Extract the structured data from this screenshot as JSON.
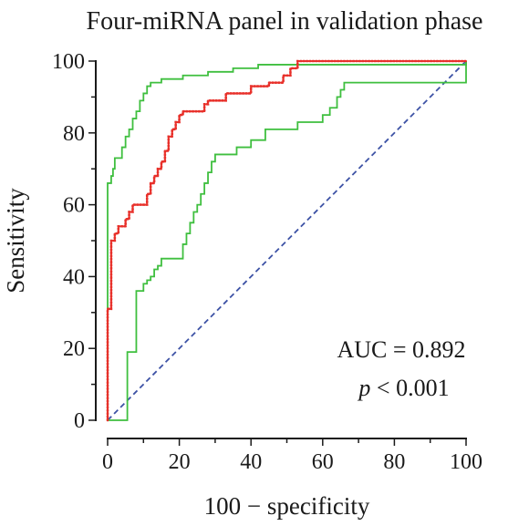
{
  "chart_data": {
    "type": "line",
    "title": "Four-miRNA panel in validation phase",
    "xlabel": "100 − specificity",
    "ylabel": "Sensitivity",
    "xlim": [
      0,
      100
    ],
    "ylim": [
      0,
      100
    ],
    "x_ticks": [
      "0",
      "20",
      "40",
      "60",
      "80",
      "100"
    ],
    "y_ticks": [
      "0",
      "20",
      "40",
      "60",
      "80",
      "100"
    ],
    "grid": false,
    "annotations": {
      "auc": "AUC = 0.892",
      "p_symbol": "p",
      "p_rest": " < 0.001"
    },
    "colors": {
      "roc": "#e8302a",
      "ci": "#3fbf3f",
      "reference": "#3d52a5",
      "axis": "#1a1a1a"
    },
    "series": [
      {
        "role": "roc",
        "style": "dotted",
        "points": [
          [
            0,
            0
          ],
          [
            0,
            31
          ],
          [
            1,
            31
          ],
          [
            1,
            50
          ],
          [
            2,
            50
          ],
          [
            2,
            52
          ],
          [
            3,
            52
          ],
          [
            3,
            54
          ],
          [
            5,
            54
          ],
          [
            5,
            56
          ],
          [
            6,
            56
          ],
          [
            6,
            58
          ],
          [
            7,
            58
          ],
          [
            7,
            60
          ],
          [
            11,
            60
          ],
          [
            11,
            63
          ],
          [
            12,
            63
          ],
          [
            12,
            66
          ],
          [
            13,
            66
          ],
          [
            13,
            68
          ],
          [
            14,
            68
          ],
          [
            14,
            70
          ],
          [
            15,
            70
          ],
          [
            15,
            72
          ],
          [
            16,
            72
          ],
          [
            16,
            75
          ],
          [
            17,
            75
          ],
          [
            17,
            77
          ],
          [
            17,
            79
          ],
          [
            18,
            79
          ],
          [
            18,
            81
          ],
          [
            19,
            81
          ],
          [
            19,
            83
          ],
          [
            20,
            83
          ],
          [
            20,
            85
          ],
          [
            21,
            85
          ],
          [
            21,
            86
          ],
          [
            27,
            86
          ],
          [
            27,
            88
          ],
          [
            28,
            88
          ],
          [
            28,
            89
          ],
          [
            33,
            89
          ],
          [
            33,
            91
          ],
          [
            40,
            91
          ],
          [
            40,
            93
          ],
          [
            45,
            93
          ],
          [
            45,
            94
          ],
          [
            49,
            94
          ],
          [
            49,
            96
          ],
          [
            51,
            96
          ],
          [
            51,
            98
          ],
          [
            53,
            98
          ],
          [
            53,
            100
          ],
          [
            100,
            100
          ]
        ]
      },
      {
        "role": "ci-upper",
        "style": "solid",
        "points": [
          [
            0,
            0
          ],
          [
            0,
            66
          ],
          [
            1,
            66
          ],
          [
            1,
            68
          ],
          [
            1.5,
            68
          ],
          [
            1.5,
            70
          ],
          [
            2,
            70
          ],
          [
            2,
            73
          ],
          [
            4,
            73
          ],
          [
            4,
            76
          ],
          [
            5,
            76
          ],
          [
            5,
            79
          ],
          [
            6,
            79
          ],
          [
            6,
            81
          ],
          [
            7,
            81
          ],
          [
            7,
            84
          ],
          [
            8,
            84
          ],
          [
            8,
            86
          ],
          [
            9,
            86
          ],
          [
            9,
            89
          ],
          [
            10,
            89
          ],
          [
            10,
            91
          ],
          [
            11,
            91
          ],
          [
            11,
            93
          ],
          [
            12,
            93
          ],
          [
            12,
            94
          ],
          [
            15,
            94
          ],
          [
            15,
            95
          ],
          [
            21,
            95
          ],
          [
            21,
            96
          ],
          [
            28,
            96
          ],
          [
            28,
            97
          ],
          [
            35,
            97
          ],
          [
            35,
            98
          ],
          [
            42,
            98
          ],
          [
            42,
            99
          ],
          [
            100,
            99
          ],
          [
            100,
            100
          ]
        ]
      },
      {
        "role": "ci-lower",
        "style": "solid",
        "points": [
          [
            0,
            0
          ],
          [
            5.5,
            0
          ],
          [
            5.5,
            19
          ],
          [
            8,
            19
          ],
          [
            8,
            36
          ],
          [
            10,
            36
          ],
          [
            10,
            38
          ],
          [
            11,
            38
          ],
          [
            11,
            39
          ],
          [
            12,
            39
          ],
          [
            12,
            40
          ],
          [
            13,
            40
          ],
          [
            13,
            42
          ],
          [
            14,
            42
          ],
          [
            14,
            43
          ],
          [
            15,
            43
          ],
          [
            15,
            45
          ],
          [
            21,
            45
          ],
          [
            21,
            49
          ],
          [
            22,
            49
          ],
          [
            22,
            52
          ],
          [
            23,
            52
          ],
          [
            23,
            55
          ],
          [
            24,
            55
          ],
          [
            24,
            58
          ],
          [
            25,
            58
          ],
          [
            25,
            60
          ],
          [
            26,
            60
          ],
          [
            26,
            63
          ],
          [
            27,
            63
          ],
          [
            27,
            66
          ],
          [
            28,
            66
          ],
          [
            28,
            69
          ],
          [
            29,
            69
          ],
          [
            29,
            72
          ],
          [
            30,
            72
          ],
          [
            30,
            74
          ],
          [
            36,
            74
          ],
          [
            36,
            76
          ],
          [
            40,
            76
          ],
          [
            40,
            78
          ],
          [
            44,
            78
          ],
          [
            44,
            81
          ],
          [
            53,
            81
          ],
          [
            53,
            83
          ],
          [
            60,
            83
          ],
          [
            60,
            85
          ],
          [
            62,
            85
          ],
          [
            62,
            87
          ],
          [
            64,
            87
          ],
          [
            64,
            90
          ],
          [
            65,
            90
          ],
          [
            65,
            92
          ],
          [
            66,
            92
          ],
          [
            66,
            94
          ],
          [
            100,
            94
          ],
          [
            100,
            100
          ]
        ]
      },
      {
        "role": "reference",
        "style": "dashed",
        "points": [
          [
            0,
            0
          ],
          [
            100,
            100
          ]
        ]
      }
    ]
  }
}
